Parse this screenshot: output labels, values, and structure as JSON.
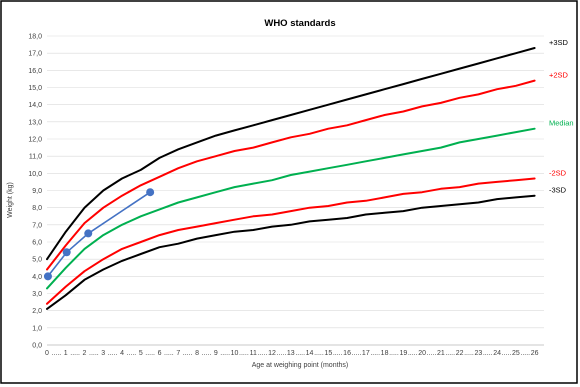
{
  "chart_data": {
    "type": "line",
    "title": "WHO standards",
    "xlabel": "Age at weighing point (months)",
    "ylabel": "Weight (kg)",
    "xlim": [
      0,
      26.5
    ],
    "ylim": [
      0,
      18
    ],
    "y_ticks": [
      "0,0",
      "1,0",
      "2,0",
      "3,0",
      "4,0",
      "5,0",
      "6,0",
      "7,0",
      "8,0",
      "9,0",
      "10,0",
      "11,0",
      "12,0",
      "13,0",
      "14,0",
      "15,0",
      "16,0",
      "17,0",
      "18,0"
    ],
    "x_ticks": [
      "0",
      "1",
      "2",
      "3",
      "4",
      "5",
      "6",
      "7",
      "8",
      "9",
      "10",
      "11",
      "12",
      "13",
      "14",
      "15",
      "16",
      "17",
      "18",
      "19",
      "20",
      "21",
      "22",
      "23",
      "24",
      "25",
      "26"
    ],
    "grid": true,
    "series": [
      {
        "name": "+3SD",
        "color": "#000000",
        "x": [
          0,
          1,
          2,
          3,
          4,
          5,
          6,
          7,
          8,
          9,
          10,
          11,
          12,
          13,
          14,
          15,
          16,
          17,
          18,
          19,
          20,
          21,
          22,
          23,
          24,
          25,
          26
        ],
        "y": [
          5.0,
          6.6,
          8.0,
          9.0,
          9.7,
          10.2,
          10.9,
          11.4,
          11.8,
          12.2,
          12.5,
          12.8,
          13.1,
          13.4,
          13.7,
          14.0,
          14.3,
          14.6,
          14.9,
          15.2,
          15.5,
          15.8,
          16.1,
          16.4,
          16.7,
          17.0,
          17.3
        ]
      },
      {
        "name": "+2SD",
        "color": "#ff0000",
        "x": [
          0,
          1,
          2,
          3,
          4,
          5,
          6,
          7,
          8,
          9,
          10,
          11,
          12,
          13,
          14,
          15,
          16,
          17,
          18,
          19,
          20,
          21,
          22,
          23,
          24,
          25,
          26
        ],
        "y": [
          4.4,
          5.8,
          7.1,
          8.0,
          8.7,
          9.3,
          9.8,
          10.3,
          10.7,
          11.0,
          11.3,
          11.5,
          11.8,
          12.1,
          12.3,
          12.6,
          12.8,
          13.1,
          13.4,
          13.6,
          13.9,
          14.1,
          14.4,
          14.6,
          14.9,
          15.1,
          15.4
        ]
      },
      {
        "name": "Median",
        "color": "#00b050",
        "x": [
          0,
          1,
          2,
          3,
          4,
          5,
          6,
          7,
          8,
          9,
          10,
          11,
          12,
          13,
          14,
          15,
          16,
          17,
          18,
          19,
          20,
          21,
          22,
          23,
          24,
          25,
          26
        ],
        "y": [
          3.3,
          4.5,
          5.6,
          6.4,
          7.0,
          7.5,
          7.9,
          8.3,
          8.6,
          8.9,
          9.2,
          9.4,
          9.6,
          9.9,
          10.1,
          10.3,
          10.5,
          10.7,
          10.9,
          11.1,
          11.3,
          11.5,
          11.8,
          12.0,
          12.2,
          12.4,
          12.6
        ]
      },
      {
        "name": "-2SD",
        "color": "#ff0000",
        "x": [
          0,
          1,
          2,
          3,
          4,
          5,
          6,
          7,
          8,
          9,
          10,
          11,
          12,
          13,
          14,
          15,
          16,
          17,
          18,
          19,
          20,
          21,
          22,
          23,
          24,
          25,
          26
        ],
        "y": [
          2.4,
          3.4,
          4.3,
          5.0,
          5.6,
          6.0,
          6.4,
          6.7,
          6.9,
          7.1,
          7.3,
          7.5,
          7.6,
          7.8,
          8.0,
          8.1,
          8.3,
          8.4,
          8.6,
          8.8,
          8.9,
          9.1,
          9.2,
          9.4,
          9.5,
          9.6,
          9.7
        ]
      },
      {
        "name": "-3SD",
        "color": "#000000",
        "x": [
          0,
          1,
          2,
          3,
          4,
          5,
          6,
          7,
          8,
          9,
          10,
          11,
          12,
          13,
          14,
          15,
          16,
          17,
          18,
          19,
          20,
          21,
          22,
          23,
          24,
          25,
          26
        ],
        "y": [
          2.1,
          2.9,
          3.8,
          4.4,
          4.9,
          5.3,
          5.7,
          5.9,
          6.2,
          6.4,
          6.6,
          6.7,
          6.9,
          7.0,
          7.2,
          7.3,
          7.4,
          7.6,
          7.7,
          7.8,
          8.0,
          8.1,
          8.2,
          8.3,
          8.5,
          8.6,
          8.7
        ]
      },
      {
        "name": "",
        "color": "#4472c4",
        "markers": true,
        "x": [
          0.05,
          1.05,
          2.2,
          5.5
        ],
        "y": [
          4.0,
          5.4,
          6.5,
          8.9
        ]
      }
    ]
  }
}
